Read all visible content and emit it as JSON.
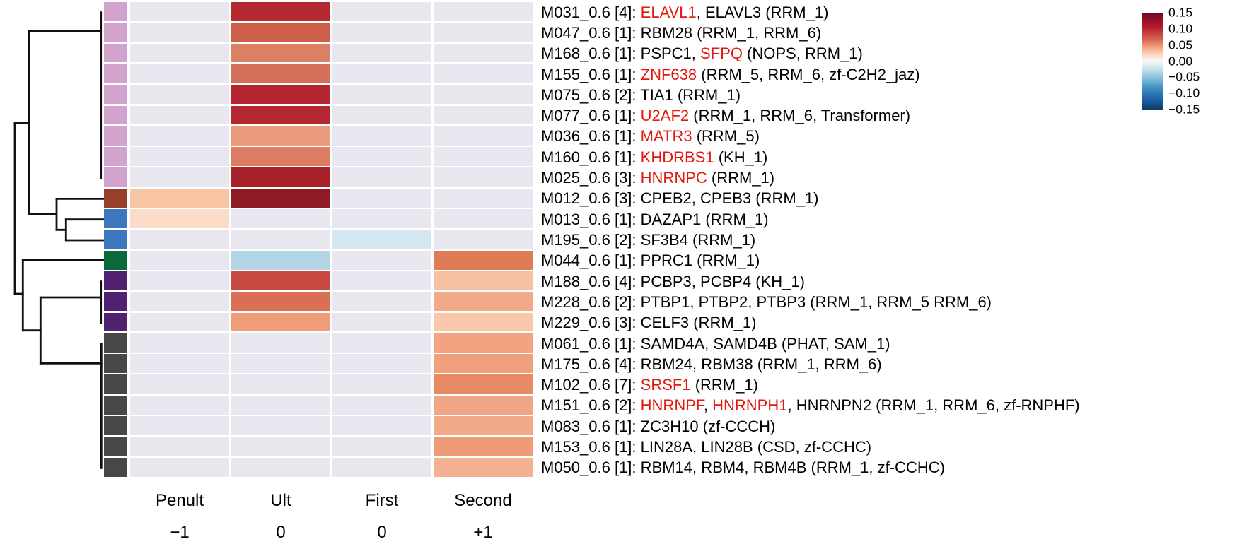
{
  "chart_data": {
    "type": "heatmap",
    "title": "",
    "columns": [
      {
        "label": "Penult",
        "sublabel": "−1"
      },
      {
        "label": "Ult",
        "sublabel": "0"
      },
      {
        "label": "First",
        "sublabel": "0"
      },
      {
        "label": "Second",
        "sublabel": "+1"
      }
    ],
    "value_range": [
      -0.15,
      0.15
    ],
    "colorbar": {
      "ticks": [
        "0.15",
        "0.10",
        "0.05",
        "0.00",
        "−0.05",
        "−0.10",
        "−0.15"
      ],
      "top_color": "#6d0a21",
      "mid_color": "#f7f7f7",
      "bottom_color": "#0b3a66"
    },
    "background_cell_color": "#e8e7ef",
    "highlight_text_color": "#e2190e",
    "group_colors": {
      "plum": "#d2a3cd",
      "brown": "#99402a",
      "blue": "#3b76bf",
      "green": "#0a6a3c",
      "purple": "#512270",
      "gray": "#474747"
    },
    "rows": [
      {
        "name": "M031_0.6 [4]",
        "group": "plum",
        "label_segments": [
          {
            "t": "M031_0.6 [4]: "
          },
          {
            "t": "ELAVL1",
            "r": 1
          },
          {
            "t": ", ELAVL3 (RRM_1)"
          }
        ],
        "values": [
          0,
          0.12,
          0,
          0
        ],
        "cell_colors": [
          null,
          "#b52a31",
          null,
          null
        ]
      },
      {
        "name": "M047_0.6 [1]",
        "group": "plum",
        "label_segments": [
          {
            "t": "M047_0.6 [1]: RBM28 (RRM_1, RRM_6)"
          }
        ],
        "values": [
          0,
          0.09,
          0,
          0
        ],
        "cell_colors": [
          null,
          "#cd5f4a",
          null,
          null
        ]
      },
      {
        "name": "M168_0.6 [1]",
        "group": "plum",
        "label_segments": [
          {
            "t": "M168_0.6 [1]: PSPC1, "
          },
          {
            "t": "SFPQ",
            "r": 1
          },
          {
            "t": " (NOPS, RRM_1)"
          }
        ],
        "values": [
          0,
          0.075,
          0,
          0
        ],
        "cell_colors": [
          null,
          "#dd8166",
          null,
          null
        ]
      },
      {
        "name": "M155_0.6 [1]",
        "group": "plum",
        "label_segments": [
          {
            "t": "M155_0.6 [1]: "
          },
          {
            "t": "ZNF638",
            "r": 1
          },
          {
            "t": " (RRM_5, RRM_6, zf-C2H2_jaz)"
          }
        ],
        "values": [
          0,
          0.085,
          0,
          0
        ],
        "cell_colors": [
          null,
          "#d4705a",
          null,
          null
        ]
      },
      {
        "name": "M075_0.6 [2]",
        "group": "plum",
        "label_segments": [
          {
            "t": "M075_0.6 [2]: TIA1 (RRM_1)"
          }
        ],
        "values": [
          0,
          0.12,
          0,
          0
        ],
        "cell_colors": [
          null,
          "#b4252f",
          null,
          null
        ]
      },
      {
        "name": "M077_0.6 [1]",
        "group": "plum",
        "label_segments": [
          {
            "t": "M077_0.6 [1]: "
          },
          {
            "t": "U2AF2",
            "r": 1
          },
          {
            "t": " (RRM_1, RRM_6, Transformer)"
          }
        ],
        "values": [
          0,
          0.115,
          0,
          0
        ],
        "cell_colors": [
          null,
          "#b42731",
          null,
          null
        ]
      },
      {
        "name": "M036_0.6 [1]",
        "group": "plum",
        "label_segments": [
          {
            "t": "M036_0.6 [1]: "
          },
          {
            "t": "MATR3",
            "r": 1
          },
          {
            "t": " (RRM_5)"
          }
        ],
        "values": [
          0,
          0.06,
          0,
          0
        ],
        "cell_colors": [
          null,
          "#eb9c7c",
          null,
          null
        ]
      },
      {
        "name": "M160_0.6 [1]",
        "group": "plum",
        "label_segments": [
          {
            "t": "M160_0.6 [1]: "
          },
          {
            "t": "KHDRBS1",
            "r": 1
          },
          {
            "t": " (KH_1)"
          }
        ],
        "values": [
          0,
          0.075,
          0,
          0
        ],
        "cell_colors": [
          null,
          "#dc7c62",
          null,
          null
        ]
      },
      {
        "name": "M025_0.6 [3]",
        "group": "plum",
        "label_segments": [
          {
            "t": "M025_0.6 [3]: "
          },
          {
            "t": "HNRNPC",
            "r": 1
          },
          {
            "t": " (RRM_1)"
          }
        ],
        "values": [
          0,
          0.13,
          0,
          0
        ],
        "cell_colors": [
          null,
          "#a82028",
          null,
          null
        ]
      },
      {
        "name": "M012_0.6 [3]",
        "group": "brown",
        "label_segments": [
          {
            "t": "M012_0.6 [3]: CPEB2, CPEB3 (RRM_1)"
          }
        ],
        "values": [
          0.04,
          0.145,
          0,
          0
        ],
        "cell_colors": [
          "#f8c5a5",
          "#8f1a26",
          null,
          null
        ]
      },
      {
        "name": "M013_0.6 [1]",
        "group": "blue",
        "label_segments": [
          {
            "t": "M013_0.6 [1]: DAZAP1 (RRM_1)"
          }
        ],
        "values": [
          0.025,
          0,
          0,
          0
        ],
        "cell_colors": [
          "#fcdcc8",
          null,
          null,
          null
        ]
      },
      {
        "name": "M195_0.6 [2]",
        "group": "blue",
        "label_segments": [
          {
            "t": "M195_0.6 [2]: SF3B4 (RRM_1)"
          }
        ],
        "values": [
          0,
          0,
          -0.035,
          0
        ],
        "cell_colors": [
          null,
          null,
          "#d4e6f0",
          null
        ]
      },
      {
        "name": "M044_0.6 [1]",
        "group": "green",
        "label_segments": [
          {
            "t": "M044_0.6 [1]: PPRC1 (RRM_1)"
          }
        ],
        "values": [
          0,
          -0.055,
          0,
          0.08
        ],
        "cell_colors": [
          null,
          "#b2d5e6",
          null,
          "#e07b58"
        ]
      },
      {
        "name": "M188_0.6 [4]",
        "group": "purple",
        "label_segments": [
          {
            "t": "M188_0.6 [4]: PCBP3, PCBP4 (KH_1)"
          }
        ],
        "values": [
          0,
          0.105,
          0,
          0.04
        ],
        "cell_colors": [
          null,
          "#c84a42",
          null,
          "#f6c0a2"
        ]
      },
      {
        "name": "M228_0.6 [2]",
        "group": "purple",
        "label_segments": [
          {
            "t": "M228_0.6 [2]: PTBP1, PTBP2, PTBP3 (RRM_1, RRM_5 RRM_6)"
          }
        ],
        "values": [
          0,
          0.085,
          0,
          0.055
        ],
        "cell_colors": [
          null,
          "#d96f55",
          null,
          "#f2a987"
        ]
      },
      {
        "name": "M229_0.6 [3]",
        "group": "purple",
        "label_segments": [
          {
            "t": "M229_0.6 [3]: CELF3 (RRM_1)"
          }
        ],
        "values": [
          0,
          0.06,
          0,
          0.035
        ],
        "cell_colors": [
          null,
          "#f09c78",
          null,
          "#f8c8ab"
        ]
      },
      {
        "name": "M061_0.6 [1]",
        "group": "gray",
        "label_segments": [
          {
            "t": "M061_0.6 [1]: SAMD4A, SAMD4B (PHAT, SAM_1)"
          }
        ],
        "values": [
          0,
          0,
          0,
          0.057
        ],
        "cell_colors": [
          null,
          null,
          null,
          "#f2a482"
        ]
      },
      {
        "name": "M175_0.6 [4]",
        "group": "gray",
        "label_segments": [
          {
            "t": "M175_0.6 [4]: RBM24, RBM38 (RRM_1, RRM_6)"
          }
        ],
        "values": [
          0,
          0,
          0,
          0.058
        ],
        "cell_colors": [
          null,
          null,
          null,
          "#f0a07c"
        ]
      },
      {
        "name": "M102_0.6 [7]",
        "group": "gray",
        "label_segments": [
          {
            "t": "M102_0.6 [7]: "
          },
          {
            "t": "SRSF1",
            "r": 1
          },
          {
            "t": " (RRM_1)"
          }
        ],
        "values": [
          0,
          0,
          0,
          0.07
        ],
        "cell_colors": [
          null,
          null,
          null,
          "#e88a64"
        ]
      },
      {
        "name": "M151_0.6 [2]",
        "group": "gray",
        "label_segments": [
          {
            "t": "M151_0.6 [2]: "
          },
          {
            "t": "HNRNPF",
            "r": 1
          },
          {
            "t": ", "
          },
          {
            "t": "HNRNPH1",
            "r": 1
          },
          {
            "t": ", HNRNPN2 (RRM_1, RRM_6, zf-RNPHF)"
          }
        ],
        "values": [
          0,
          0,
          0,
          0.055
        ],
        "cell_colors": [
          null,
          null,
          null,
          "#f0a585"
        ]
      },
      {
        "name": "M083_0.6 [1]",
        "group": "gray",
        "label_segments": [
          {
            "t": "M083_0.6 [1]: ZC3H10 (zf-CCCH)"
          }
        ],
        "values": [
          0,
          0,
          0,
          0.055
        ],
        "cell_colors": [
          null,
          null,
          null,
          "#f1a988"
        ]
      },
      {
        "name": "M153_0.6 [1]",
        "group": "gray",
        "label_segments": [
          {
            "t": "M153_0.6 [1]: LIN28A, LIN28B (CSD, zf-CCHC)"
          }
        ],
        "values": [
          0,
          0,
          0,
          0.065
        ],
        "cell_colors": [
          null,
          null,
          null,
          "#ee9c78"
        ]
      },
      {
        "name": "M050_0.6 [1]",
        "group": "gray",
        "label_segments": [
          {
            "t": "M050_0.6 [1]: RBM14, RBM4, RBM4B (RRM_1, zf-CCHC)"
          }
        ],
        "values": [
          0,
          0,
          0,
          0.05
        ],
        "cell_colors": [
          null,
          null,
          null,
          "#f4b093"
        ]
      }
    ]
  }
}
